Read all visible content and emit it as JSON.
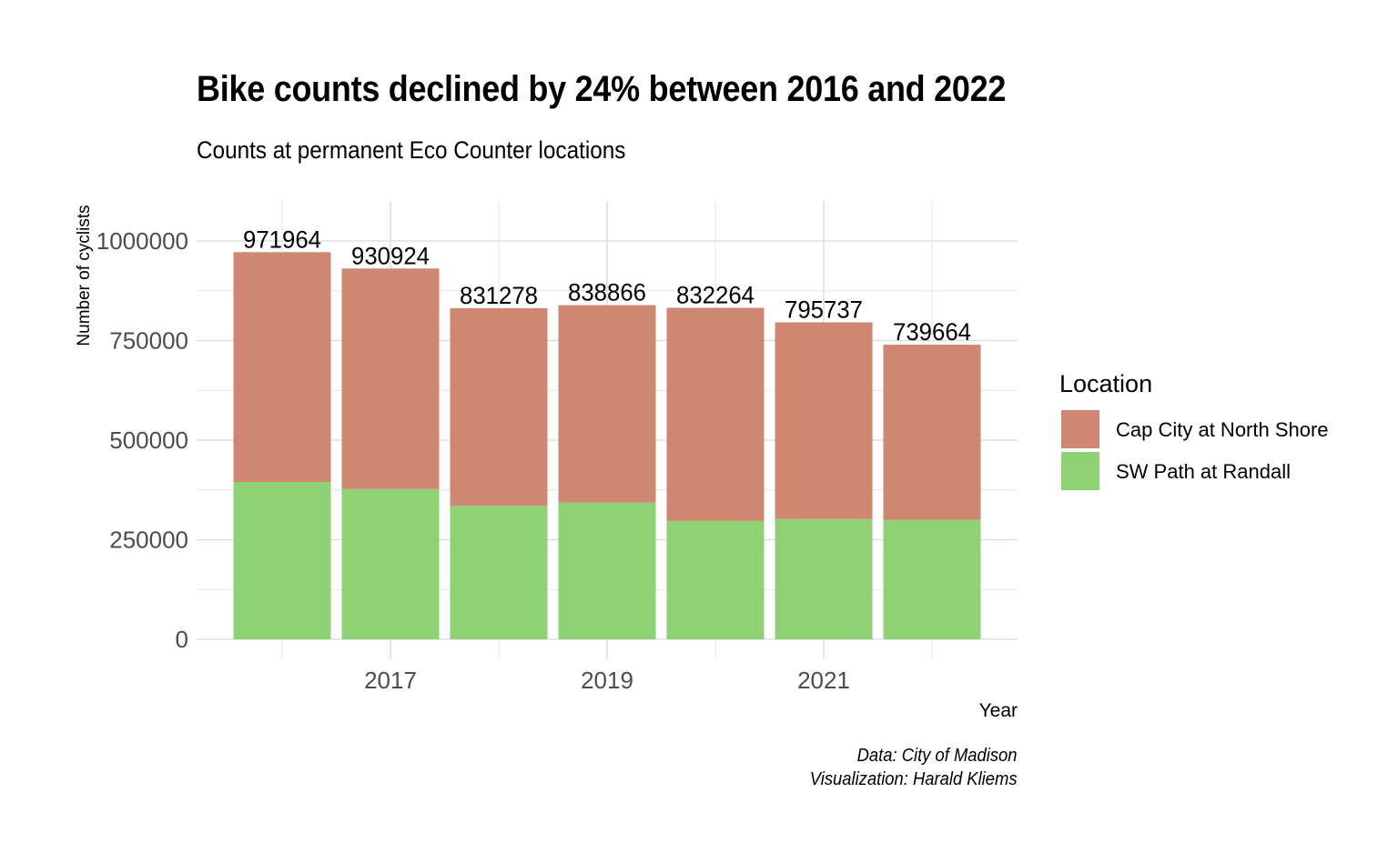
{
  "title": "Bike counts declined by 24% between 2016 and 2022",
  "subtitle": "Counts at permanent Eco Counter locations",
  "caption": {
    "line1": "Data: City of Madison",
    "line2": "Visualization: Harald Kliems"
  },
  "colors": {
    "cap_city": "#D08772",
    "sw_path": "#8FD275",
    "grid": "#d9d9d9",
    "axis_text": "#4d4d4d"
  },
  "chart_data": {
    "type": "bar",
    "stacked": true,
    "x": [
      2016,
      2017,
      2018,
      2019,
      2020,
      2021,
      2022
    ],
    "x_tick_labels": [
      "2017",
      "2019",
      "2021"
    ],
    "x_ticks": [
      2017,
      2019,
      2021
    ],
    "series": [
      {
        "name": "SW Path at Randall",
        "color": "#8FD275",
        "values": [
          395000,
          377000,
          335000,
          343000,
          297000,
          302000,
          300000
        ]
      },
      {
        "name": "Cap City at North Shore",
        "color": "#D08772",
        "values": [
          576964,
          553924,
          496278,
          495866,
          535264,
          493737,
          439664
        ]
      }
    ],
    "totals": [
      971964,
      930924,
      831278,
      838866,
      832264,
      795737,
      739664
    ],
    "total_labels": [
      "971964",
      "930924",
      "831278",
      "838866",
      "832264",
      "795737",
      "739664"
    ],
    "xlabel": "Year",
    "ylabel": "Number of cyclists",
    "ylim": [
      0,
      1100000
    ],
    "y_ticks": [
      0,
      250000,
      500000,
      750000,
      1000000
    ],
    "y_tick_labels": [
      "0",
      "250000",
      "500000",
      "750000",
      "1000000"
    ],
    "grid": true,
    "legend": {
      "title": "Location",
      "placement": "right",
      "entries": [
        "Cap City at North Shore",
        "SW Path at Randall"
      ]
    }
  }
}
